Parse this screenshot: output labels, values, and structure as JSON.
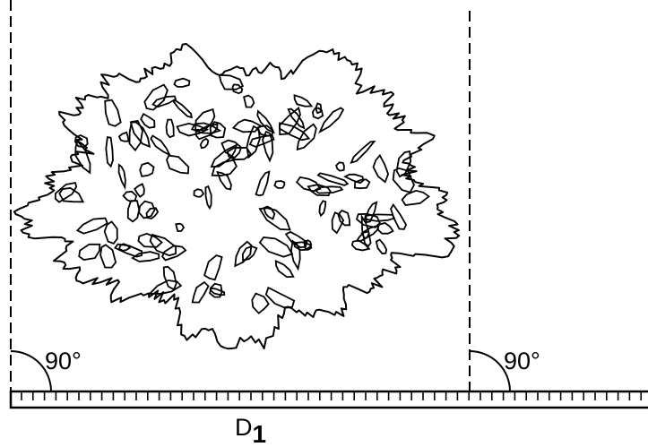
{
  "labels": {
    "left_angle": "90°",
    "right_angle": "90°",
    "diameter": "D",
    "diameter_subscript": "1"
  }
}
